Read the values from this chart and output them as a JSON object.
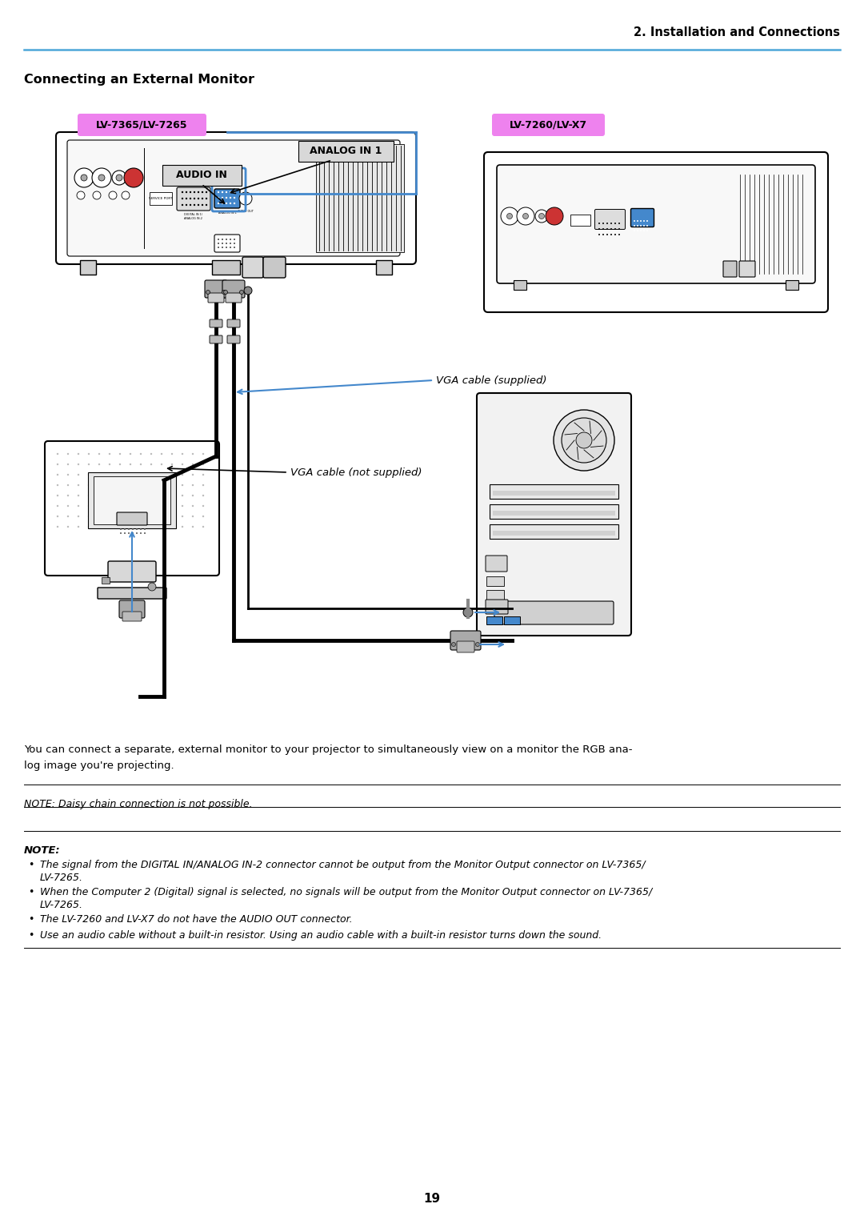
{
  "page_title": "2. Installation and Connections",
  "section_title": "Connecting an External Monitor",
  "header_line_color": "#4da6d9",
  "label_lv1": "LV-7365/LV-7265",
  "label_lv2": "LV-7260/LV-X7",
  "label_bg": "#ee82ee",
  "analog_in_label": "ANALOG IN 1",
  "audio_in_label": "AUDIO IN",
  "vga_supplied_label": "VGA cable (supplied)",
  "vga_not_supplied_label": "VGA cable (not supplied)",
  "body_text_line1": "You can connect a separate, external monitor to your projector to simultaneously view on a monitor the RGB ana-",
  "body_text_line2": "log image you're projecting.",
  "note1": "NOTE: Daisy chain connection is not possible.",
  "note2_title": "NOTE:",
  "note2_bullets": [
    "The signal from the DIGITAL IN/ANALOG IN-2 connector cannot be output from the Monitor Output connector on LV-7365/\nLV-7265.",
    "When the Computer 2 (Digital) signal is selected, no signals will be output from the Monitor Output connector on LV-7365/\nLV-7265.",
    "The LV-7260 and LV-X7 do not have the AUDIO OUT connector.",
    "Use an audio cable without a built-in resistor. Using an audio cable with a built-in resistor turns down the sound."
  ],
  "page_number": "19",
  "bg_color": "#ffffff",
  "text_color": "#000000",
  "blue_color": "#4488cc",
  "gray_fill": "#f0f0f0",
  "dark_gray": "#888888",
  "mid_gray": "#cccccc"
}
